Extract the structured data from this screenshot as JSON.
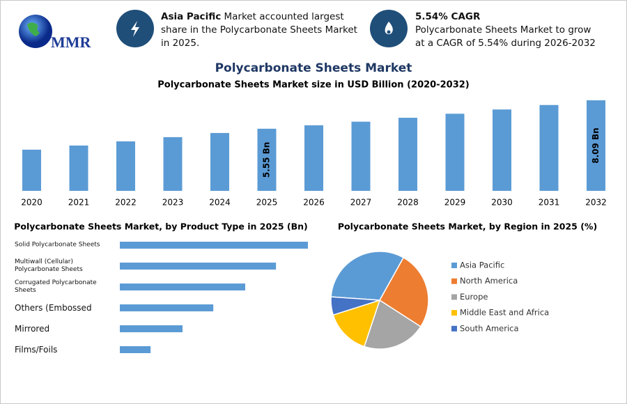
{
  "header": {
    "logo": "MMR",
    "box1": {
      "bold": "Asia Pacific",
      "text": "Market accounted largest share in the Polycarbonate Sheets Market in 2025."
    },
    "box2": {
      "title": "5.54% CAGR",
      "text": "Polycarbonate Sheets Market to grow at a CAGR of 5.54% during 2026-2032"
    }
  },
  "chart_data": [
    {
      "type": "bar",
      "title": "Polycarbonate Sheets Market",
      "subtitle": "Polycarbonate Sheets Market size in USD Billion (2020-2032)",
      "categories": [
        "2020",
        "2021",
        "2022",
        "2023",
        "2024",
        "2025",
        "2026",
        "2027",
        "2028",
        "2029",
        "2030",
        "2031",
        "2032"
      ],
      "values": [
        3.68,
        4.05,
        4.42,
        4.8,
        5.17,
        5.55,
        5.86,
        6.18,
        6.53,
        6.89,
        7.27,
        7.67,
        8.09
      ],
      "value_labels": [
        null,
        null,
        null,
        null,
        null,
        "5.55 Bn",
        null,
        null,
        null,
        null,
        null,
        null,
        "8.09 Bn"
      ],
      "color": "#5b9bd5"
    },
    {
      "type": "bar",
      "orientation": "horizontal",
      "title": "Polycarbonate Sheets Market, by Product Type in 2025 (Bn)",
      "categories": [
        "Solid Polycarbonate Sheets",
        "Multiwall (Cellular) Polycarbonate Sheets",
        "Corrugated Polycarbonate Sheets",
        "Others (Embossed",
        "Mirrored",
        "Films/Foils"
      ],
      "values": [
        1.59,
        1.32,
        1.06,
        0.79,
        0.53,
        0.26
      ],
      "color": "#5b9bd5"
    },
    {
      "type": "pie",
      "title": "Polycarbonate Sheets Market, by Region in 2025 (%)",
      "categories": [
        "Asia Pacific",
        "North America",
        "Europe",
        "Middle East and Africa",
        "South America"
      ],
      "values": [
        32,
        26,
        21,
        15,
        6
      ],
      "colors": [
        "#5b9bd5",
        "#ed7d31",
        "#a5a5a5",
        "#ffc000",
        "#4472c4"
      ],
      "legend": "right"
    }
  ]
}
